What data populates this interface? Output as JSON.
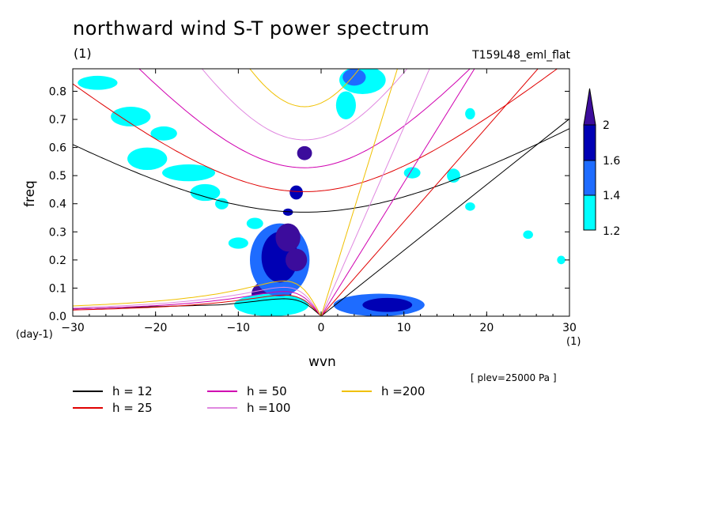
{
  "chart_data": {
    "type": "contour",
    "title": "northward wind S-T power spectrum",
    "units_label": "(1)",
    "experiment": "T159L48_eml_flat",
    "xlabel": "wvn",
    "ylabel": "freq",
    "xunits": "(1)",
    "yunits": "(day-1)",
    "xlim": [
      -30,
      30
    ],
    "ylim": [
      0,
      0.88
    ],
    "xticks": [
      -30,
      -20,
      -10,
      0,
      10,
      20,
      30
    ],
    "xtick_labels": [
      "−30",
      "−20",
      "−10",
      "0",
      "10",
      "20",
      "30"
    ],
    "yticks": [
      0,
      0.1,
      0.2,
      0.3,
      0.4,
      0.5,
      0.6,
      0.7,
      0.8
    ],
    "ytick_labels": [
      "0.0",
      "0.1",
      "0.2",
      "0.3",
      "0.4",
      "0.5",
      "0.6",
      "0.7",
      "0.8"
    ],
    "plev_note": "[ plev=25000 Pa ]",
    "colorbar": {
      "levels": [
        1.2,
        1.4,
        1.6,
        2
      ],
      "labels": [
        "1.2",
        "1.4",
        "1.6",
        "2"
      ],
      "colors": [
        "#00ffff",
        "#1e6cff",
        "#0000b4",
        "#3c0c9c"
      ]
    },
    "dispersion_curves": [
      {
        "name": "h = 12",
        "h": 12,
        "color": "#000000",
        "kelvin_slope": 0.0234,
        "wig_min": 0.37
      },
      {
        "name": "h = 25",
        "h": 25,
        "color": "#e00000",
        "kelvin_slope": 0.0336,
        "wig_min": 0.443
      },
      {
        "name": "h = 50",
        "h": 50,
        "color": "#d000b0",
        "kelvin_slope": 0.0475,
        "wig_min": 0.528
      },
      {
        "name": "h =100",
        "h": 100,
        "color": "#e088e0",
        "kelvin_slope": 0.0672,
        "wig_min": 0.627
      },
      {
        "name": "h =200",
        "h": 200,
        "color": "#f0c000",
        "kelvin_slope": 0.0955,
        "wig_min": 0.745
      }
    ],
    "rossby_peaks": [
      0.062,
      0.075,
      0.088,
      0.103,
      0.125
    ],
    "power_blobs": [
      {
        "x": -6,
        "y": 0.08,
        "rx": 2.4,
        "ry": 0.05,
        "level": 3
      },
      {
        "x": -6,
        "y": 0.04,
        "rx": 4.5,
        "ry": 0.04,
        "level": 0
      },
      {
        "x": -5,
        "y": 0.2,
        "rx": 3.6,
        "ry": 0.13,
        "level": 1
      },
      {
        "x": -5,
        "y": 0.21,
        "rx": 2.2,
        "ry": 0.09,
        "level": 2
      },
      {
        "x": -4,
        "y": 0.28,
        "rx": 1.5,
        "ry": 0.05,
        "level": 3
      },
      {
        "x": -3,
        "y": 0.2,
        "rx": 1.3,
        "ry": 0.04,
        "level": 3
      },
      {
        "x": 7,
        "y": 0.04,
        "rx": 5.5,
        "ry": 0.04,
        "level": 1
      },
      {
        "x": 8,
        "y": 0.04,
        "rx": 3.0,
        "ry": 0.025,
        "level": 2
      },
      {
        "x": 5,
        "y": 0.84,
        "rx": 2.8,
        "ry": 0.05,
        "level": 0
      },
      {
        "x": 4,
        "y": 0.85,
        "rx": 1.4,
        "ry": 0.03,
        "level": 1
      },
      {
        "x": 3,
        "y": 0.75,
        "rx": 1.2,
        "ry": 0.05,
        "level": 0
      },
      {
        "x": -2,
        "y": 0.58,
        "rx": 0.9,
        "ry": 0.025,
        "level": 3
      },
      {
        "x": -3,
        "y": 0.44,
        "rx": 0.8,
        "ry": 0.025,
        "level": 2
      },
      {
        "x": -4,
        "y": 0.37,
        "rx": 0.6,
        "ry": 0.013,
        "level": 2
      },
      {
        "x": -14,
        "y": 0.44,
        "rx": 1.8,
        "ry": 0.03,
        "level": 0
      },
      {
        "x": -16,
        "y": 0.51,
        "rx": 3.2,
        "ry": 0.03,
        "level": 0
      },
      {
        "x": -19,
        "y": 0.65,
        "rx": 1.6,
        "ry": 0.025,
        "level": 0
      },
      {
        "x": -21,
        "y": 0.56,
        "rx": 2.4,
        "ry": 0.04,
        "level": 0
      },
      {
        "x": -23,
        "y": 0.71,
        "rx": 2.4,
        "ry": 0.035,
        "level": 0
      },
      {
        "x": -27,
        "y": 0.83,
        "rx": 2.4,
        "ry": 0.025,
        "level": 0
      },
      {
        "x": -12,
        "y": 0.4,
        "rx": 0.8,
        "ry": 0.02,
        "level": 0
      },
      {
        "x": -10,
        "y": 0.26,
        "rx": 1.2,
        "ry": 0.02,
        "level": 0
      },
      {
        "x": 11,
        "y": 0.51,
        "rx": 1.0,
        "ry": 0.02,
        "level": 0
      },
      {
        "x": 16,
        "y": 0.5,
        "rx": 0.8,
        "ry": 0.025,
        "level": 0
      },
      {
        "x": 18,
        "y": 0.72,
        "rx": 0.6,
        "ry": 0.02,
        "level": 0
      },
      {
        "x": 25,
        "y": 0.29,
        "rx": 0.6,
        "ry": 0.015,
        "level": 0
      },
      {
        "x": 29,
        "y": 0.2,
        "rx": 0.5,
        "ry": 0.015,
        "level": 0
      },
      {
        "x": -8,
        "y": 0.33,
        "rx": 1.0,
        "ry": 0.02,
        "level": 0
      },
      {
        "x": 18,
        "y": 0.39,
        "rx": 0.6,
        "ry": 0.015,
        "level": 0
      }
    ],
    "legend": [
      "h = 12",
      "h = 25",
      "h = 50",
      "h =100",
      "h =200"
    ]
  }
}
